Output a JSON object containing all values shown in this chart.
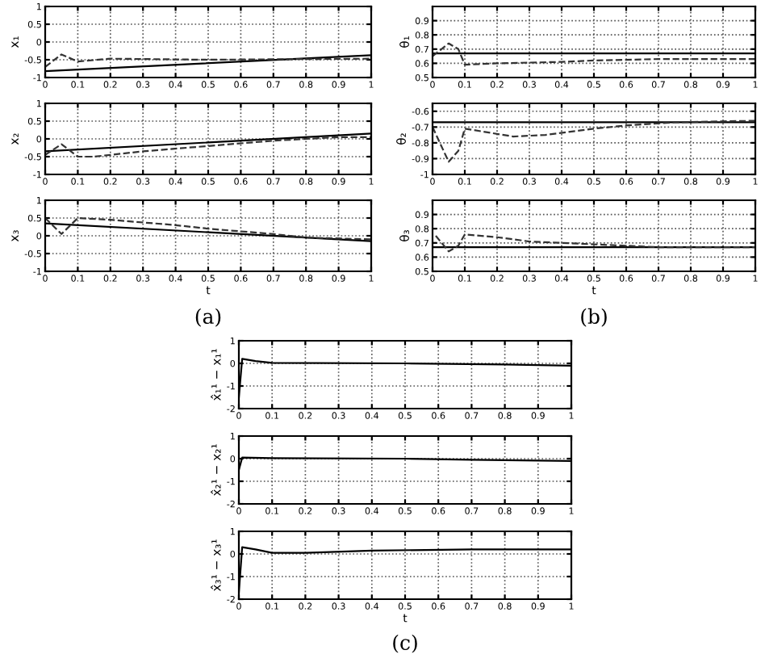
{
  "chart_data": [
    {
      "type": "line",
      "ylabel": "x₁",
      "xlim": [
        0,
        1
      ],
      "xticks": [
        0,
        0.1,
        0.2,
        0.3,
        0.4,
        0.5,
        0.6,
        0.7,
        0.8,
        0.9,
        1
      ],
      "ylim": [
        -1,
        1
      ],
      "yticks": [
        -1,
        -0.5,
        0,
        0.5,
        1
      ],
      "grid": true,
      "series": [
        {
          "color": "#000000",
          "line_style": "solid",
          "x": [
            0,
            1
          ],
          "values": [
            -0.82,
            -0.37
          ]
        },
        {
          "color": "#333333",
          "line_style": "dashed",
          "x": [
            0,
            0.05,
            0.1,
            0.2,
            0.5,
            0.8,
            1
          ],
          "values": [
            -0.7,
            -0.35,
            -0.55,
            -0.47,
            -0.5,
            -0.48,
            -0.47
          ]
        }
      ]
    },
    {
      "type": "line",
      "ylabel": "x₂",
      "xlim": [
        0,
        1
      ],
      "xticks": [
        0,
        0.1,
        0.2,
        0.3,
        0.4,
        0.5,
        0.6,
        0.7,
        0.8,
        0.9,
        1
      ],
      "ylim": [
        -1,
        1
      ],
      "yticks": [
        -1,
        -0.5,
        0,
        0.5,
        1
      ],
      "grid": true,
      "series": [
        {
          "color": "#000000",
          "line_style": "solid",
          "x": [
            0,
            1
          ],
          "values": [
            -0.35,
            0.15
          ]
        },
        {
          "color": "#333333",
          "line_style": "dashed",
          "x": [
            0,
            0.05,
            0.1,
            0.15,
            0.3,
            0.5,
            0.7,
            0.9,
            1
          ],
          "values": [
            -0.45,
            -0.15,
            -0.5,
            -0.5,
            -0.35,
            -0.2,
            -0.05,
            0.05,
            0.05
          ]
        }
      ]
    },
    {
      "type": "line",
      "ylabel": "x₃",
      "xlabel": "t",
      "annotations": [
        "(a)"
      ],
      "xlim": [
        0,
        1
      ],
      "xticks": [
        0,
        0.1,
        0.2,
        0.3,
        0.4,
        0.5,
        0.6,
        0.7,
        0.8,
        0.9,
        1
      ],
      "ylim": [
        -1,
        1
      ],
      "yticks": [
        -1,
        -0.5,
        0,
        0.5,
        1
      ],
      "grid": true,
      "series": [
        {
          "color": "#000000",
          "line_style": "solid",
          "x": [
            0,
            1
          ],
          "values": [
            0.35,
            -0.15
          ]
        },
        {
          "color": "#333333",
          "line_style": "dashed",
          "x": [
            0,
            0.05,
            0.1,
            0.2,
            0.4,
            0.5,
            0.7,
            0.8,
            1
          ],
          "values": [
            0.5,
            0.05,
            0.5,
            0.45,
            0.3,
            0.2,
            0.05,
            -0.05,
            -0.1
          ]
        }
      ]
    },
    {
      "type": "line",
      "ylabel": "θ₁",
      "xlim": [
        0,
        1
      ],
      "xticks": [
        0,
        0.1,
        0.2,
        0.3,
        0.4,
        0.5,
        0.6,
        0.7,
        0.8,
        0.9,
        1
      ],
      "ylim": [
        0.5,
        1
      ],
      "yticks": [
        0.5,
        0.6,
        0.7,
        0.8,
        0.9
      ],
      "grid": true,
      "series": [
        {
          "color": "#000000",
          "line_style": "solid",
          "x": [
            0,
            1
          ],
          "values": [
            0.67,
            0.67
          ]
        },
        {
          "color": "#333333",
          "line_style": "dashed",
          "x": [
            0,
            0.05,
            0.08,
            0.1,
            0.2,
            0.4,
            0.5,
            0.7,
            1
          ],
          "values": [
            0.65,
            0.74,
            0.7,
            0.59,
            0.6,
            0.61,
            0.62,
            0.63,
            0.63
          ]
        }
      ]
    },
    {
      "type": "line",
      "ylabel": "θ₂",
      "xlim": [
        0,
        1
      ],
      "xticks": [
        0,
        0.1,
        0.2,
        0.3,
        0.4,
        0.5,
        0.6,
        0.7,
        0.8,
        0.9,
        1
      ],
      "ylim": [
        -1,
        -0.55
      ],
      "yticks": [
        -1,
        -0.9,
        -0.8,
        -0.7,
        -0.6
      ],
      "grid": true,
      "series": [
        {
          "color": "#000000",
          "line_style": "solid",
          "x": [
            0,
            1
          ],
          "values": [
            -0.67,
            -0.67
          ]
        },
        {
          "color": "#333333",
          "line_style": "dashed",
          "x": [
            0,
            0.05,
            0.08,
            0.1,
            0.25,
            0.35,
            0.5,
            0.6,
            0.75,
            1
          ],
          "values": [
            -0.7,
            -0.92,
            -0.85,
            -0.71,
            -0.76,
            -0.75,
            -0.71,
            -0.69,
            -0.67,
            -0.66
          ]
        }
      ]
    },
    {
      "type": "line",
      "ylabel": "θ₃",
      "xlabel": "t",
      "annotations": [
        "(b)"
      ],
      "xlim": [
        0,
        1
      ],
      "xticks": [
        0,
        0.1,
        0.2,
        0.3,
        0.4,
        0.5,
        0.6,
        0.7,
        0.8,
        0.9,
        1
      ],
      "ylim": [
        0.5,
        1
      ],
      "yticks": [
        0.5,
        0.6,
        0.7,
        0.8,
        0.9
      ],
      "grid": true,
      "series": [
        {
          "color": "#000000",
          "line_style": "solid",
          "x": [
            0,
            1
          ],
          "values": [
            0.67,
            0.67
          ]
        },
        {
          "color": "#333333",
          "line_style": "dashed",
          "x": [
            0.01,
            0.05,
            0.08,
            0.1,
            0.2,
            0.3,
            0.5,
            0.7,
            1
          ],
          "values": [
            0.75,
            0.64,
            0.68,
            0.76,
            0.74,
            0.71,
            0.69,
            0.67,
            0.67
          ]
        }
      ]
    },
    {
      "type": "line",
      "ylabel": "x̂₁¹ − x₁¹",
      "xlim": [
        0,
        1
      ],
      "xticks": [
        0,
        0.1,
        0.2,
        0.3,
        0.4,
        0.5,
        0.6,
        0.7,
        0.8,
        0.9,
        1
      ],
      "ylim": [
        -2,
        1
      ],
      "yticks": [
        -2,
        -1,
        0,
        1
      ],
      "grid": true,
      "series": [
        {
          "color": "#000000",
          "line_style": "solid",
          "x": [
            0,
            0.01,
            0.05,
            0.1,
            0.5,
            0.8,
            1
          ],
          "values": [
            -1.5,
            0.2,
            0.1,
            0.02,
            0,
            -0.05,
            -0.1
          ]
        }
      ]
    },
    {
      "type": "line",
      "ylabel": "x̂₂¹ − x₂¹",
      "xlim": [
        0,
        1
      ],
      "xticks": [
        0,
        0.1,
        0.2,
        0.3,
        0.4,
        0.5,
        0.6,
        0.7,
        0.8,
        0.9,
        1
      ],
      "ylim": [
        -2,
        1
      ],
      "yticks": [
        -2,
        -1,
        0,
        1
      ],
      "grid": true,
      "series": [
        {
          "color": "#000000",
          "line_style": "solid",
          "x": [
            0,
            0.01,
            0.1,
            0.5,
            0.7,
            1
          ],
          "values": [
            -0.5,
            0.05,
            0.02,
            0,
            -0.05,
            -0.1
          ]
        }
      ]
    },
    {
      "type": "line",
      "ylabel": "x̂₃¹ − x₃¹",
      "xlabel": "t",
      "annotations": [
        "(c)"
      ],
      "xlim": [
        0,
        1
      ],
      "xticks": [
        0,
        0.1,
        0.2,
        0.3,
        0.4,
        0.5,
        0.6,
        0.7,
        0.8,
        0.9,
        1
      ],
      "ylim": [
        -2,
        1
      ],
      "yticks": [
        -2,
        -1,
        0,
        1
      ],
      "grid": true,
      "series": [
        {
          "color": "#000000",
          "line_style": "solid",
          "x": [
            0,
            0.01,
            0.05,
            0.1,
            0.2,
            0.4,
            0.7,
            1
          ],
          "values": [
            -1.7,
            0.3,
            0.2,
            0.05,
            0.05,
            0.15,
            0.2,
            0.2
          ]
        }
      ]
    }
  ]
}
